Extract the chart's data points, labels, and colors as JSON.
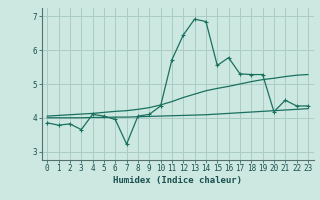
{
  "xlabel": "Humidex (Indice chaleur)",
  "xlim": [
    -0.5,
    23.5
  ],
  "ylim": [
    2.75,
    7.25
  ],
  "xticks": [
    0,
    1,
    2,
    3,
    4,
    5,
    6,
    7,
    8,
    9,
    10,
    11,
    12,
    13,
    14,
    15,
    16,
    17,
    18,
    19,
    20,
    21,
    22,
    23
  ],
  "yticks": [
    3,
    4,
    5,
    6,
    7
  ],
  "bg_color": "#cce8e0",
  "grid_color": "#aaccc4",
  "line_color": "#1a7060",
  "line1_x": [
    0,
    1,
    2,
    3,
    4,
    5,
    6,
    7,
    8,
    9,
    10,
    11,
    12,
    13,
    14,
    15,
    16,
    17,
    18,
    19,
    20,
    21,
    22,
    23
  ],
  "line1_y": [
    3.85,
    3.78,
    3.82,
    3.65,
    4.1,
    4.05,
    3.95,
    3.22,
    4.05,
    4.1,
    4.35,
    5.72,
    6.45,
    6.92,
    6.85,
    5.55,
    5.78,
    5.3,
    5.28,
    5.28,
    4.18,
    4.52,
    4.35,
    4.35
  ],
  "line2_x": [
    0,
    1,
    2,
    3,
    4,
    5,
    6,
    7,
    8,
    9,
    10,
    11,
    12,
    13,
    14,
    15,
    16,
    17,
    18,
    19,
    20,
    21,
    22,
    23
  ],
  "line2_y": [
    4.05,
    4.07,
    4.09,
    4.11,
    4.13,
    4.16,
    4.19,
    4.21,
    4.25,
    4.3,
    4.38,
    4.48,
    4.6,
    4.7,
    4.8,
    4.87,
    4.93,
    5.0,
    5.07,
    5.13,
    5.17,
    5.22,
    5.26,
    5.28
  ],
  "line3_x": [
    0,
    1,
    2,
    3,
    4,
    5,
    6,
    7,
    8,
    9,
    10,
    11,
    12,
    13,
    14,
    15,
    16,
    17,
    18,
    19,
    20,
    21,
    22,
    23
  ],
  "line3_y": [
    4.0,
    4.0,
    4.0,
    4.0,
    4.01,
    4.01,
    4.02,
    4.02,
    4.03,
    4.04,
    4.05,
    4.06,
    4.07,
    4.08,
    4.09,
    4.11,
    4.13,
    4.15,
    4.17,
    4.19,
    4.21,
    4.23,
    4.25,
    4.27
  ]
}
